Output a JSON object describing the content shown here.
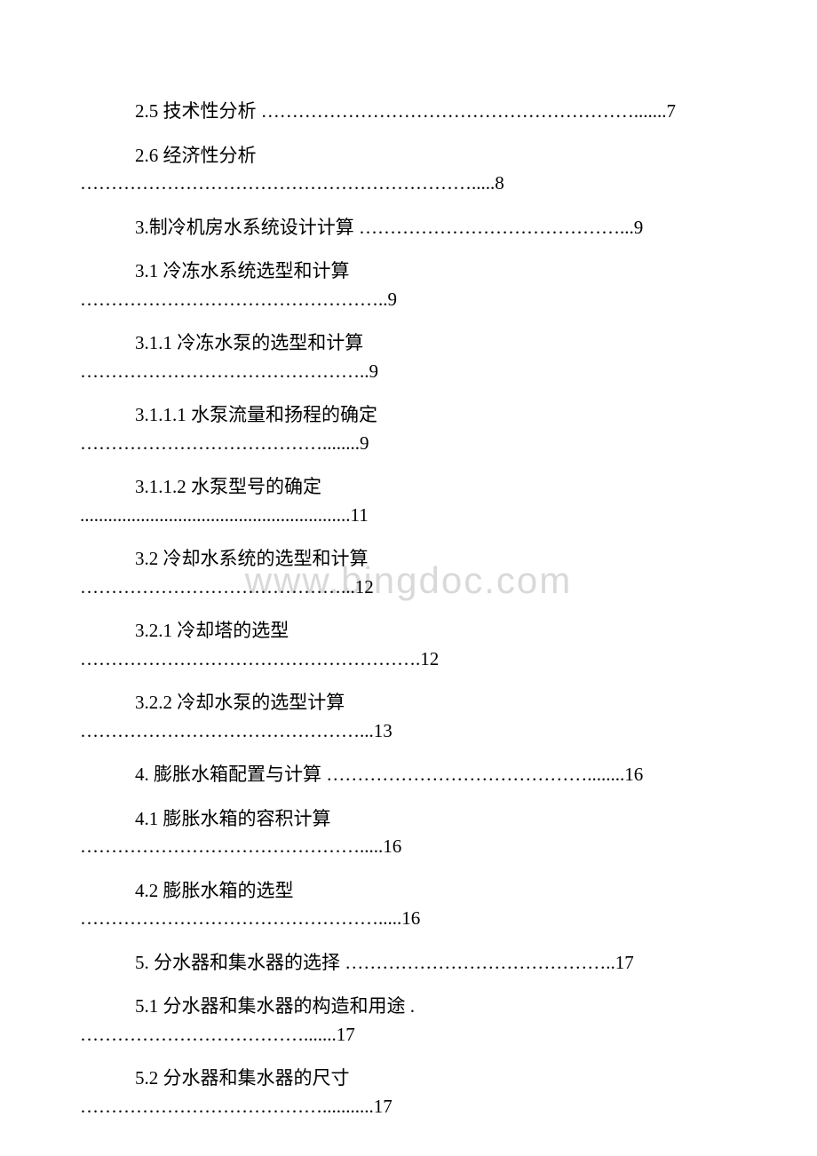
{
  "watermark": "www.bingdoc.com",
  "entries": [
    {
      "indent": true,
      "title": "2.5 技术性分析 ",
      "leader": "…………………………………………………….......7"
    },
    {
      "indent": true,
      "title": "2.6 经济性分析",
      "leader": "……………………………………………………….....8"
    },
    {
      "indent": true,
      "title": "3.制冷机房水系统设计计算 ",
      "leader": "……………………………………...9"
    },
    {
      "indent": true,
      "title": "3.1 冷冻水系统选型和计算",
      "leader": "…………………………………………..9"
    },
    {
      "indent": true,
      "title": "3.1.1 冷冻水泵的选型和计算",
      "leader": "………………………………………..9"
    },
    {
      "indent": true,
      "title": "3.1.1.1 水泵流量和扬程的确定",
      "leader": "…………………………………........9"
    },
    {
      "indent": true,
      "title": "3.1.1.2 水泵型号的确定",
      "leader": "..........................................................11"
    },
    {
      "indent": true,
      "title": "3.2 冷却水系统的选型和计算",
      "leader": "……………………………………...12"
    },
    {
      "indent": true,
      "title": "3.2.1 冷却塔的选型",
      "leader": "……………………………………………….12"
    },
    {
      "indent": true,
      "title": "3.2.2 冷却水泵的选型计算",
      "leader": "………………………………………...13"
    },
    {
      "indent": true,
      "title": "4. 膨胀水箱配置与计算 ",
      "leader": "……………………………………........16"
    },
    {
      "indent": true,
      "title": "4.1 膨胀水箱的容积计算",
      "leader": "……………………………………….....16"
    },
    {
      "indent": true,
      "title": "4.2 膨胀水箱的选型",
      "leader": "………………………………………….....16"
    },
    {
      "indent": true,
      "title": "5. 分水器和集水器的选择 ",
      "leader": "……………………………………..17"
    },
    {
      "indent": true,
      "title": "5.1 分水器和集水器的构造和用途 .",
      "leader": "……………………………….......17"
    },
    {
      "indent": true,
      "title": "5.2 分水器和集水器的尺寸",
      "leader": "…………………………………...........17"
    }
  ],
  "styles": {
    "font_size_pt": 16,
    "text_color": "#000000",
    "background_color": "#ffffff",
    "watermark_color": "#d9d9d9"
  }
}
